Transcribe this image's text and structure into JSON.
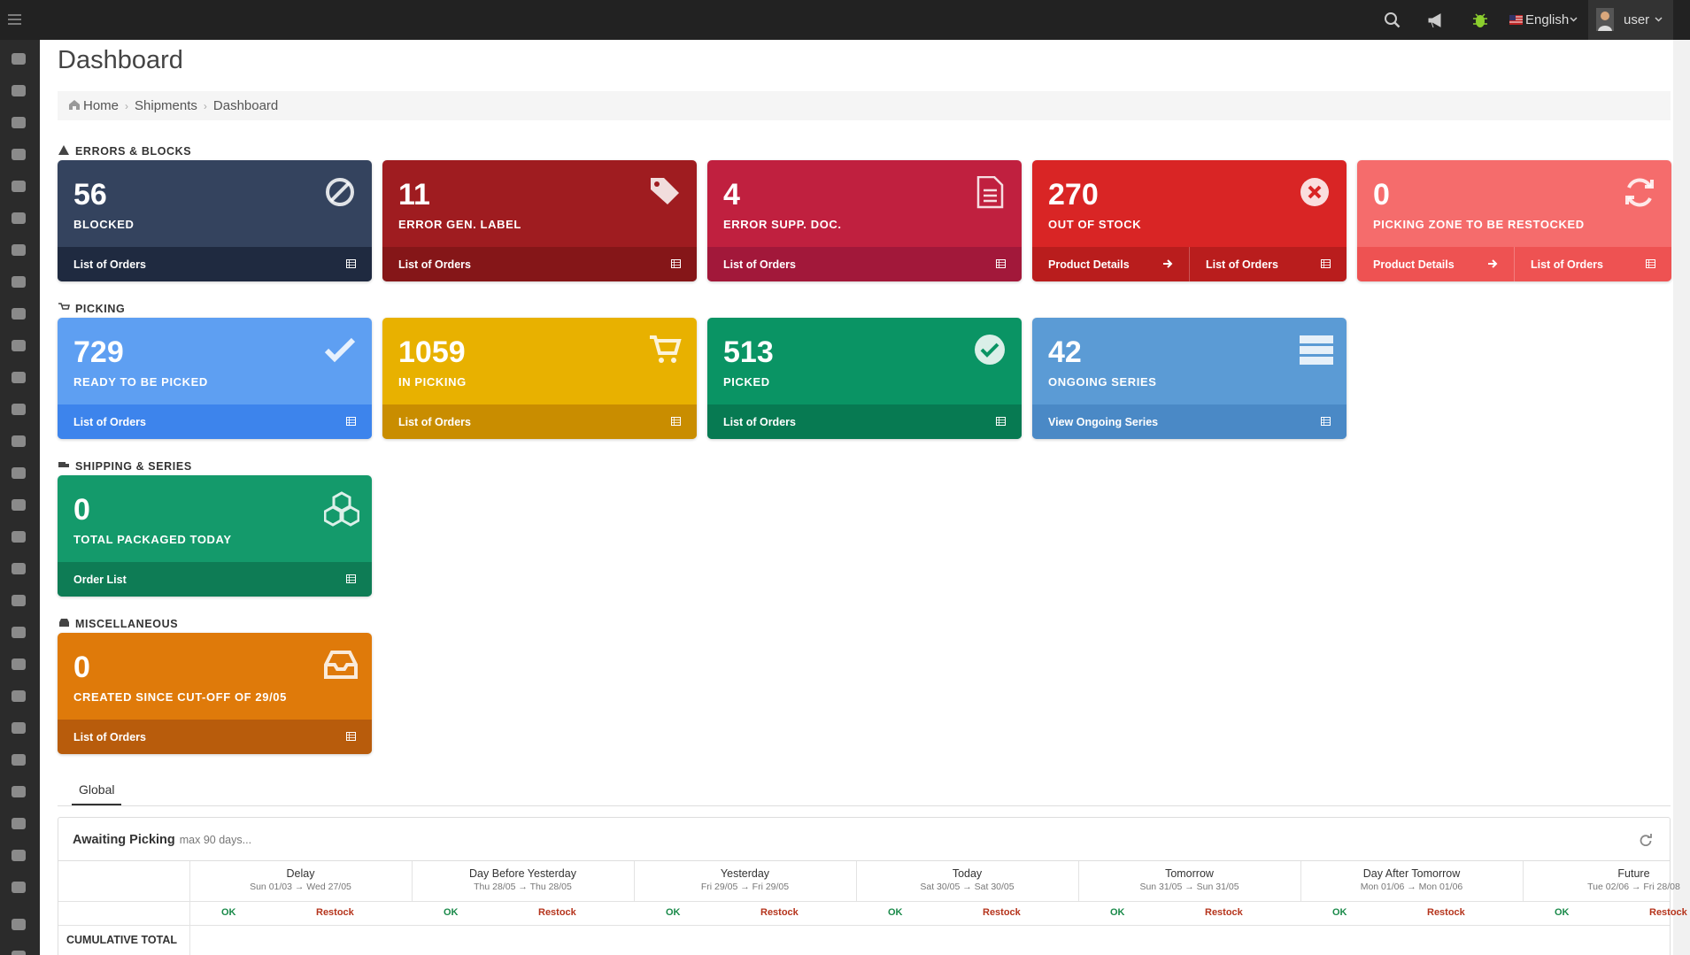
{
  "header": {
    "language": "English",
    "user": "user"
  },
  "page_title": "Dashboard",
  "breadcrumb": [
    "Home",
    "Shipments",
    "Dashboard"
  ],
  "sections": [
    {
      "title": "ERRORS & BLOCKS",
      "cards": [
        {
          "value": 56,
          "label": "BLOCKED",
          "links": [
            "List of Orders"
          ]
        },
        {
          "value": 11,
          "label": "ERROR GEN. LABEL",
          "links": [
            "List of Orders"
          ]
        },
        {
          "value": 4,
          "label": "ERROR SUPP. DOC.",
          "links": [
            "List of Orders"
          ]
        },
        {
          "value": 270,
          "label": "OUT OF STOCK",
          "links": [
            "Product Details",
            "List of Orders"
          ]
        },
        {
          "value": 0,
          "label": "PICKING ZONE TO BE RESTOCKED",
          "links": [
            "Product Details",
            "List of Orders"
          ]
        }
      ]
    },
    {
      "title": "PICKING",
      "cards": [
        {
          "value": 729,
          "label": "READY TO BE PICKED",
          "links": [
            "List of Orders"
          ]
        },
        {
          "value": 1059,
          "label": "IN PICKING",
          "links": [
            "List of Orders"
          ]
        },
        {
          "value": 513,
          "label": "PICKED",
          "links": [
            "List of Orders"
          ]
        },
        {
          "value": 42,
          "label": "ONGOING SERIES",
          "links": [
            "View Ongoing Series"
          ]
        }
      ]
    },
    {
      "title": "SHIPPING & SERIES",
      "cards": [
        {
          "value": 0,
          "label": "TOTAL PACKAGED TODAY",
          "links": [
            "Order List"
          ]
        }
      ]
    },
    {
      "title": "MISCELLANEOUS",
      "cards": [
        {
          "value": 0,
          "label": "CREATED SINCE CUT-OFF OF 29/05",
          "links": [
            "List of Orders"
          ]
        }
      ]
    }
  ],
  "tabs": [
    "Global"
  ],
  "panel": {
    "title": "Awaiting Picking",
    "subtitle": "max 90 days...",
    "columns": [
      {
        "name": "Delay",
        "range": "Sun 01/03 → Wed 27/05"
      },
      {
        "name": "Day Before Yesterday",
        "range": "Thu 28/05 → Thu 28/05"
      },
      {
        "name": "Yesterday",
        "range": "Fri 29/05 → Fri 29/05"
      },
      {
        "name": "Today",
        "range": "Sat 30/05 → Sat 30/05"
      },
      {
        "name": "Tomorrow",
        "range": "Sun 31/05 → Sun 31/05"
      },
      {
        "name": "Day After Tomorrow",
        "range": "Mon 01/06 → Mon 01/06"
      },
      {
        "name": "Future",
        "range": "Tue 02/06 → Fri 28/08"
      }
    ],
    "sub_headers": [
      "OK",
      "Restock"
    ],
    "rows": [
      "CUMULATIVE TOTAL"
    ]
  }
}
